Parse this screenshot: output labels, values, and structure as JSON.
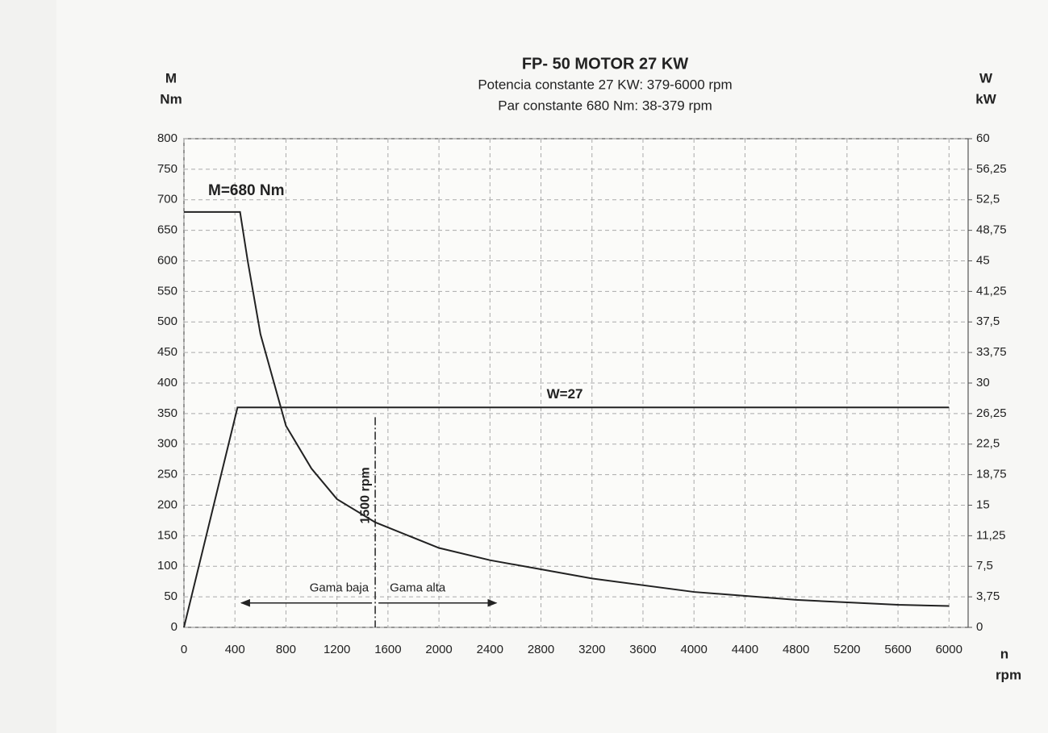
{
  "chart_data": {
    "type": "line",
    "title": "FP- 50   MOTOR 27 KW",
    "subtitle": [
      "Potencia constante 27 KW: 379-6000 rpm",
      "Par constante 680 Nm: 38-379 rpm"
    ],
    "y_label": [
      "M",
      "Nm"
    ],
    "y2_label": [
      "W",
      "kW"
    ],
    "x_label": [
      "n",
      "rpm"
    ],
    "xlim": [
      0,
      6150
    ],
    "xticks": [
      0,
      400,
      800,
      1200,
      1600,
      2000,
      2400,
      2800,
      3200,
      3600,
      4000,
      4400,
      4800,
      5200,
      5600,
      6000
    ],
    "ylim": [
      0,
      800
    ],
    "yticks": [
      0,
      50,
      100,
      150,
      200,
      250,
      300,
      350,
      400,
      450,
      500,
      550,
      600,
      650,
      700,
      750,
      800
    ],
    "y2lim": [
      0,
      60
    ],
    "y2ticks": [
      0,
      {
        "value": 3.75,
        "label": "3,75"
      },
      {
        "value": 7.5,
        "label": "7,5"
      },
      {
        "value": 11.25,
        "label": "11,25"
      },
      15,
      {
        "value": 18.75,
        "label": "18,75"
      },
      {
        "value": 22.5,
        "label": "22,5"
      },
      {
        "value": 26.25,
        "label": "26,25"
      },
      30,
      {
        "value": 33.75,
        "label": "33,75"
      },
      {
        "value": 37.5,
        "label": "37,5"
      },
      {
        "value": 41.25,
        "label": "41,25"
      },
      45,
      {
        "value": 48.75,
        "label": "48,75"
      },
      {
        "value": 52.5,
        "label": "52,5"
      },
      {
        "value": 56.25,
        "label": "56,25"
      },
      60
    ],
    "grid": true,
    "series": [
      {
        "name": "M=680 Nm",
        "color": "#222222",
        "x": [
          0,
          440,
          500,
          600,
          800,
          1000,
          1200,
          1500,
          2000,
          2400,
          2800,
          3200,
          4000,
          4800,
          5600,
          6000
        ],
        "values": [
          680,
          680,
          600,
          480,
          330,
          260,
          210,
          172,
          130,
          110,
          95,
          80,
          58,
          45,
          37,
          35
        ]
      },
      {
        "name": "W=27",
        "color": "#222222",
        "axis": "y2",
        "x": [
          0,
          420,
          6000
        ],
        "values": [
          0,
          27,
          27
        ]
      }
    ],
    "annotations": [
      {
        "text": "1500 rpm",
        "x": 1500
      },
      {
        "text": "Gama baja",
        "x": [
          450,
          1500
        ],
        "y": 40
      },
      {
        "text": "Gama alta",
        "x": [
          1500,
          2450
        ],
        "y": 40
      }
    ]
  }
}
